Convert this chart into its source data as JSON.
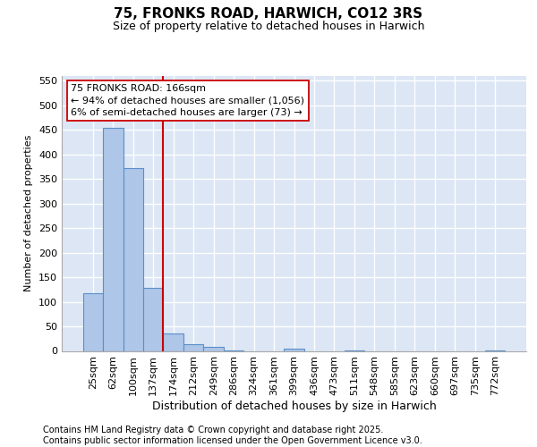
{
  "title": "75, FRONKS ROAD, HARWICH, CO12 3RS",
  "subtitle": "Size of property relative to detached houses in Harwich",
  "xlabel": "Distribution of detached houses by size in Harwich",
  "ylabel": "Number of detached properties",
  "categories": [
    "25sqm",
    "62sqm",
    "100sqm",
    "137sqm",
    "174sqm",
    "212sqm",
    "249sqm",
    "286sqm",
    "324sqm",
    "361sqm",
    "399sqm",
    "436sqm",
    "473sqm",
    "511sqm",
    "548sqm",
    "585sqm",
    "623sqm",
    "660sqm",
    "697sqm",
    "735sqm",
    "772sqm"
  ],
  "values": [
    118,
    455,
    373,
    128,
    35,
    13,
    8,
    1,
    0,
    0,
    5,
    0,
    0,
    1,
    0,
    0,
    0,
    0,
    0,
    0,
    1
  ],
  "bar_color": "#aec6e8",
  "bar_edge_color": "#5b8fc9",
  "vline_color": "#cc0000",
  "annotation_text": "75 FRONKS ROAD: 166sqm\n← 94% of detached houses are smaller (1,056)\n6% of semi-detached houses are larger (73) →",
  "annotation_box_color": "#ffffff",
  "annotation_box_edge_color": "#cc0000",
  "ylim": [
    0,
    560
  ],
  "yticks": [
    0,
    50,
    100,
    150,
    200,
    250,
    300,
    350,
    400,
    450,
    500,
    550
  ],
  "bg_color": "#dce6f5",
  "grid_color": "#ffffff",
  "footer": "Contains HM Land Registry data © Crown copyright and database right 2025.\nContains public sector information licensed under the Open Government Licence v3.0.",
  "title_fontsize": 11,
  "subtitle_fontsize": 9,
  "xlabel_fontsize": 9,
  "ylabel_fontsize": 8,
  "tick_fontsize": 8,
  "footer_fontsize": 7,
  "annot_fontsize": 8
}
